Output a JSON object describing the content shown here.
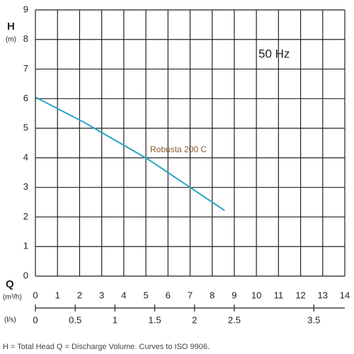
{
  "chart_data": {
    "type": "line",
    "y_label": "H",
    "y_unit": "(m)",
    "x_label": "Q",
    "x_unit": "(m³/h)",
    "x2_unit": "(l/s)",
    "annotation": "50 Hz",
    "footnote": "H = Total Head Q = Discharge Volume. Curves to ISO 9906.",
    "x": [
      0,
      2.2,
      5.1,
      8.56
    ],
    "series": [
      {
        "name": "Robusta 200 C",
        "color": "#2aa3c8",
        "values": [
          6.05,
          5.2,
          3.95,
          2.22
        ]
      }
    ],
    "xlim": [
      0,
      14
    ],
    "xticks": [
      0,
      1,
      2,
      3,
      4,
      5,
      6,
      7,
      8,
      9,
      10,
      11,
      12,
      13,
      14
    ],
    "ylim": [
      0,
      9
    ],
    "yticks": [
      0,
      1,
      2,
      3,
      4,
      5,
      6,
      7,
      8,
      9
    ],
    "x2lim": [
      0,
      3.889
    ],
    "x2ticks": [
      0,
      0.5,
      1,
      1.5,
      2,
      2.5,
      3.5
    ],
    "grid": true
  }
}
